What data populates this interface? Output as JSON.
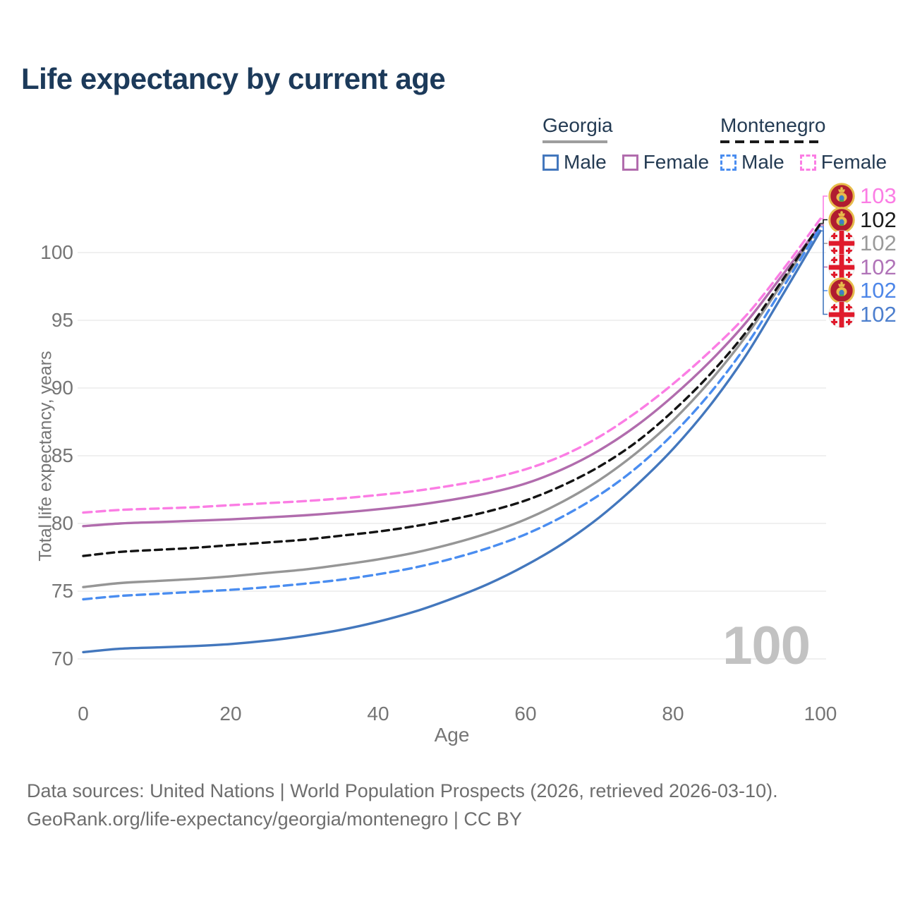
{
  "header": {
    "title": "Life expectancy by current age"
  },
  "watermark": "100",
  "legend": {
    "groups": [
      {
        "id": "georgia",
        "label": "Georgia",
        "line_color": "#9e9e9e",
        "line_style": "solid",
        "items": [
          {
            "id": "georgia-male",
            "label": "Male",
            "color": "#4377bd",
            "style": "solid"
          },
          {
            "id": "georgia-female",
            "label": "Female",
            "color": "#b16cad",
            "style": "solid"
          }
        ]
      },
      {
        "id": "montenegro",
        "label": "Montenegro",
        "line_color": "#1a1a1a",
        "line_style": "dashed",
        "items": [
          {
            "id": "montenegro-male",
            "label": "Male",
            "color": "#4a8df0",
            "style": "dashed"
          },
          {
            "id": "montenegro-female",
            "label": "Female",
            "color": "#fb7de4",
            "style": "dashed"
          }
        ]
      }
    ]
  },
  "axes": {
    "xlabel": "Age",
    "ylabel": "Total life expectancy, years",
    "xticks": [
      0,
      20,
      40,
      60,
      80,
      100
    ],
    "yticks": [
      70,
      75,
      80,
      85,
      90,
      95,
      100
    ]
  },
  "chart_data": {
    "type": "line",
    "title": "Life expectancy by current age",
    "xlabel": "Age",
    "ylabel": "Total life expectancy, years",
    "xlim": [
      0,
      100
    ],
    "ylim": [
      70,
      103
    ],
    "xticks": [
      0,
      20,
      40,
      60,
      80,
      100
    ],
    "yticks": [
      70,
      75,
      80,
      85,
      90,
      95,
      100
    ],
    "grid": true,
    "legend_position": "top-right",
    "x": [
      0,
      5,
      10,
      15,
      20,
      25,
      30,
      35,
      40,
      45,
      50,
      55,
      60,
      65,
      70,
      75,
      80,
      85,
      90,
      95,
      100
    ],
    "series": [
      {
        "id": "montenegro-female",
        "name": "Montenegro Female",
        "color": "#fb7de4",
        "dashed": true,
        "flag": "montenegro",
        "end_label": "103",
        "label_color": "#fb7de4",
        "values": [
          80.8,
          81.0,
          81.1,
          81.2,
          81.35,
          81.5,
          81.65,
          81.85,
          82.1,
          82.4,
          82.8,
          83.3,
          84.0,
          85.0,
          86.4,
          88.2,
          90.3,
          92.7,
          95.4,
          98.8,
          102.5
        ]
      },
      {
        "id": "montenegro-combined",
        "name": "Montenegro",
        "color": "#141414",
        "dashed": true,
        "flag": "montenegro",
        "end_label": "102",
        "label_color": "#1a1a1a",
        "values": [
          77.6,
          77.9,
          78.05,
          78.2,
          78.4,
          78.6,
          78.8,
          79.1,
          79.4,
          79.8,
          80.3,
          80.9,
          81.7,
          82.8,
          84.2,
          86.0,
          88.3,
          91.0,
          94.2,
          98.1,
          102.15
        ]
      },
      {
        "id": "georgia-combined",
        "name": "Georgia",
        "color": "#969696",
        "dashed": false,
        "flag": "georgia",
        "end_label": "102",
        "label_color": "#9a9a9a",
        "values": [
          75.3,
          75.6,
          75.75,
          75.9,
          76.1,
          76.35,
          76.6,
          76.95,
          77.35,
          77.85,
          78.5,
          79.3,
          80.3,
          81.6,
          83.2,
          85.2,
          87.6,
          90.5,
          93.9,
          97.9,
          102.1
        ]
      },
      {
        "id": "georgia-female",
        "name": "Georgia Female",
        "color": "#b16cad",
        "dashed": false,
        "flag": "georgia",
        "end_label": "102",
        "label_color": "#b073b8",
        "values": [
          79.8,
          80.0,
          80.1,
          80.2,
          80.3,
          80.45,
          80.6,
          80.8,
          81.05,
          81.35,
          81.75,
          82.25,
          82.95,
          84.0,
          85.4,
          87.2,
          89.4,
          91.95,
          94.9,
          98.45,
          102.05
        ]
      },
      {
        "id": "montenegro-male",
        "name": "Montenegro Male",
        "color": "#4a8df0",
        "dashed": true,
        "flag": "montenegro",
        "end_label": "102",
        "label_color": "#4d86e8",
        "values": [
          74.4,
          74.65,
          74.8,
          74.95,
          75.1,
          75.3,
          75.55,
          75.85,
          76.25,
          76.75,
          77.4,
          78.2,
          79.2,
          80.5,
          82.1,
          84.1,
          86.6,
          89.6,
          93.2,
          97.5,
          101.9
        ]
      },
      {
        "id": "georgia-male",
        "name": "Georgia Male",
        "color": "#4377bd",
        "dashed": false,
        "flag": "georgia",
        "end_label": "102",
        "label_color": "#4d7fce",
        "values": [
          70.5,
          70.75,
          70.85,
          70.95,
          71.1,
          71.35,
          71.7,
          72.15,
          72.75,
          73.5,
          74.45,
          75.55,
          76.9,
          78.5,
          80.45,
          82.8,
          85.5,
          88.7,
          92.5,
          97.0,
          101.6
        ]
      }
    ]
  },
  "footer": {
    "line1": "Data sources: United Nations | World Population Prospects (2026, retrieved 2026-03-10).",
    "line2": "GeoRank.org/life-expectancy/georgia/montenegro | CC BY"
  }
}
